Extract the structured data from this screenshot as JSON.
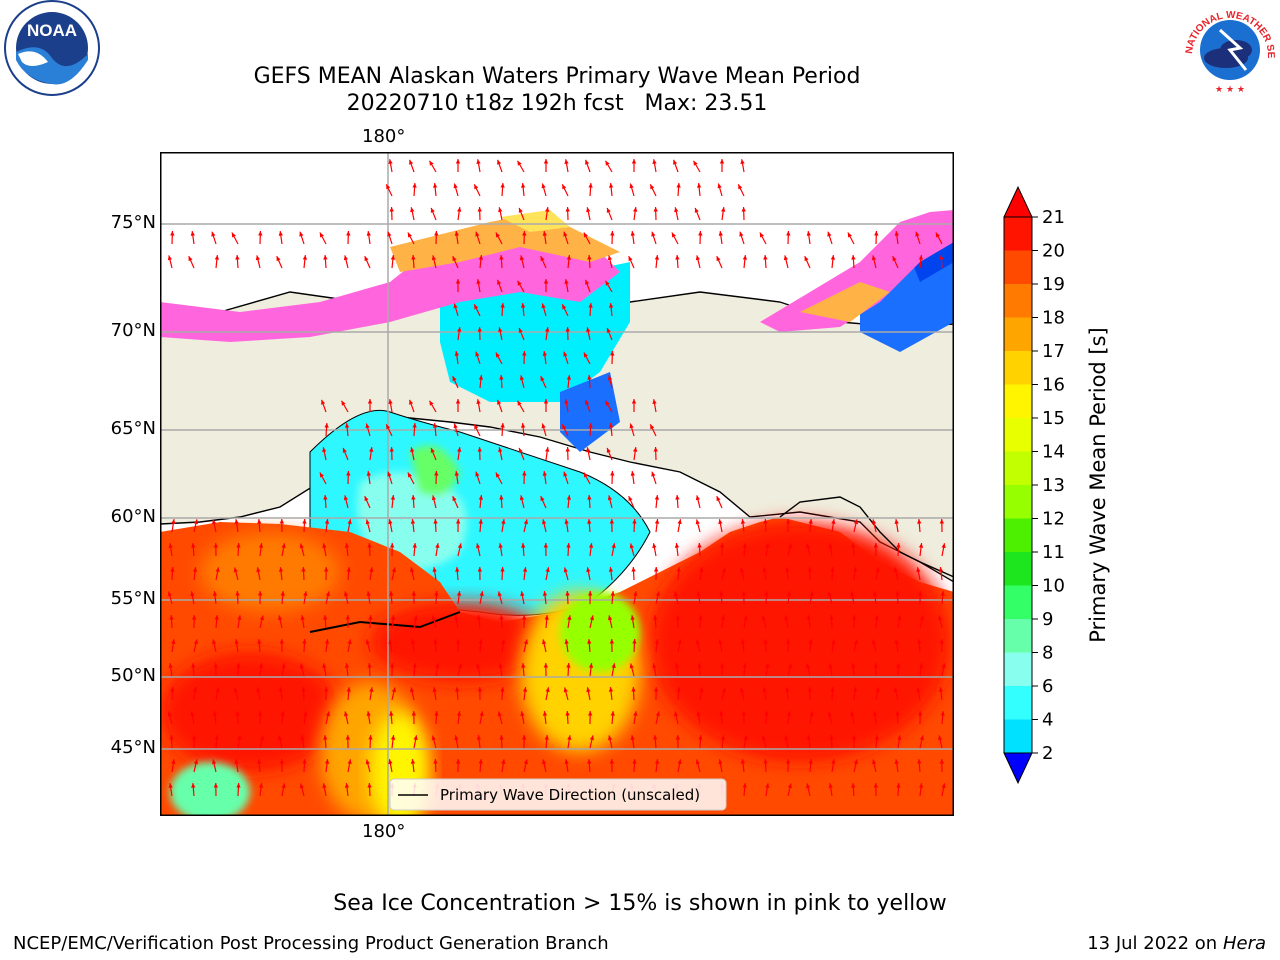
{
  "title": {
    "line1": "GEFS MEAN Alaskan Waters Primary Wave Mean Period",
    "line2": "20220710 t18z 192h fcst   Max: 23.51"
  },
  "map": {
    "lon_label_top": "180°",
    "lon_label_bottom": "180°",
    "lat_labels": [
      "75°N",
      "70°N",
      "65°N",
      "60°N",
      "55°N",
      "50°N",
      "45°N"
    ],
    "legend_text": "Primary Wave Direction (unscaled)",
    "land_color": "#efeddd",
    "arrow_color": "#ff0000",
    "ice_color": "#ff66dd"
  },
  "colorbar": {
    "label": "Primary Wave Mean Period [s]",
    "ticks": [
      "21",
      "20",
      "19",
      "18",
      "17",
      "16",
      "15",
      "14",
      "13",
      "12",
      "11",
      "10",
      "9",
      "8",
      "6",
      "4",
      "2"
    ],
    "colors": [
      "#ff1400",
      "#ff4a00",
      "#ff7a00",
      "#ffa500",
      "#ffd200",
      "#fff500",
      "#e8ff00",
      "#c2ff00",
      "#96ff00",
      "#4cf000",
      "#1ee61e",
      "#33ff66",
      "#66ffaa",
      "#88ffee",
      "#33ffff",
      "#00e0ff",
      "#0066ff"
    ],
    "extend_low_color": "#0000ff",
    "extend_high_color": "#ff0000"
  },
  "footer": {
    "ice_note": "Sea Ice Concentration > 15% is shown in pink to yellow",
    "credit": "NCEP/EMC/Verification Post Processing Product Generation Branch",
    "date": "13 Jul 2022 on ",
    "host": "Hera"
  },
  "logos": {
    "noaa_text": "NOAA",
    "nws_text": "NATIONAL WEATHER SERVICE"
  }
}
